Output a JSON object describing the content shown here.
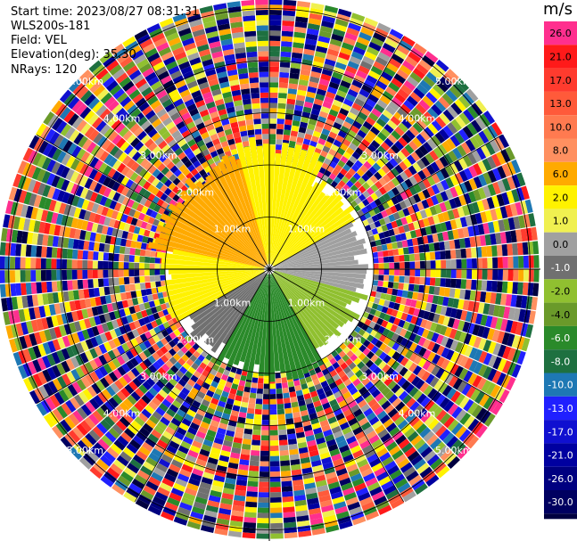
{
  "header": {
    "start_time": "Start time: 2023/08/27 08:31:31",
    "station": "WLS200s-181",
    "field": "Field: VEL",
    "elevation": "Elevation(deg): 35.30",
    "nrays": "NRays: 120"
  },
  "chart_data": {
    "type": "heatmap",
    "subtype": "ppi-radar",
    "field": "VEL",
    "unit": "m/s",
    "nrays": 120,
    "elevation_deg": 35.3,
    "range_rings_km": [
      1.0,
      2.0,
      3.0,
      4.0,
      5.0
    ],
    "ring_labels": [
      "1.00km",
      "2.00km",
      "3.00km",
      "4.00km",
      "5.00km"
    ],
    "colorbar": {
      "ticks": [
        "26.0",
        "21.0",
        "17.0",
        "13.0",
        "10.0",
        "8.0",
        "6.0",
        "2.0",
        "1.0",
        "0.0",
        "-1.0",
        "-2.0",
        "-4.0",
        "-6.0",
        "-8.0",
        "-10.0",
        "-13.0",
        "-17.0",
        "-21.0",
        "-26.0",
        "-30.0"
      ],
      "colors": [
        "#ff2f8e",
        "#ff1a1a",
        "#ff3b2e",
        "#ff5a3a",
        "#ff7a50",
        "#ff9060",
        "#ffaa00",
        "#fff200",
        "#f0f050",
        "#a0a0a0",
        "#707070",
        "#90c030",
        "#6a9a2a",
        "#2a8a2a",
        "#1e7040",
        "#1e78b4",
        "#2020ff",
        "#1010d0",
        "#0000a0",
        "#000080",
        "#000060",
        "#000040"
      ]
    },
    "sectors": [
      {
        "az_from": 280,
        "az_to": 345,
        "range_km": [
          0.1,
          2.2
        ],
        "velocity": 6.0
      },
      {
        "az_from": 345,
        "az_to": 25,
        "range_km": [
          0.1,
          2.4
        ],
        "velocity": 2.0
      },
      {
        "az_from": 25,
        "az_to": 60,
        "range_km": [
          0.1,
          1.9
        ],
        "velocity": 2.0
      },
      {
        "az_from": 60,
        "az_to": 105,
        "range_km": [
          0.1,
          1.8
        ],
        "velocity": 0.0
      },
      {
        "az_from": 105,
        "az_to": 150,
        "range_km": [
          0.1,
          1.8
        ],
        "velocity": -2.0
      },
      {
        "az_from": 150,
        "az_to": 210,
        "range_km": [
          0.1,
          2.0
        ],
        "velocity": -6.0
      },
      {
        "az_from": 210,
        "az_to": 240,
        "range_km": [
          0.1,
          1.8
        ],
        "velocity": -1.0
      },
      {
        "az_from": 240,
        "az_to": 280,
        "range_km": [
          0.1,
          2.0
        ],
        "velocity": 2.0
      }
    ],
    "noise_range_km": [
      2.0,
      5.15
    ],
    "grid": true
  }
}
